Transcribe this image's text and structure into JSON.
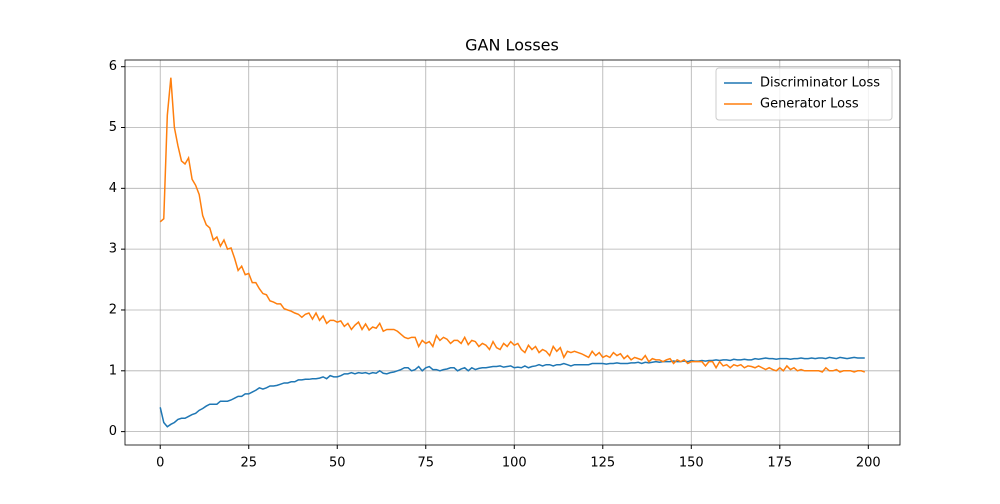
{
  "chart_data": {
    "type": "line",
    "title": "GAN Losses",
    "x": [
      0,
      1,
      2,
      3,
      4,
      5,
      6,
      7,
      8,
      9,
      10,
      11,
      12,
      13,
      14,
      15,
      16,
      17,
      18,
      19,
      20,
      21,
      22,
      23,
      24,
      25,
      26,
      27,
      28,
      29,
      30,
      31,
      32,
      33,
      34,
      35,
      36,
      37,
      38,
      39,
      40,
      41,
      42,
      43,
      44,
      45,
      46,
      47,
      48,
      49,
      50,
      51,
      52,
      53,
      54,
      55,
      56,
      57,
      58,
      59,
      60,
      61,
      62,
      63,
      64,
      65,
      66,
      67,
      68,
      69,
      70,
      71,
      72,
      73,
      74,
      75,
      76,
      77,
      78,
      79,
      80,
      81,
      82,
      83,
      84,
      85,
      86,
      87,
      88,
      89,
      90,
      91,
      92,
      93,
      94,
      95,
      96,
      97,
      98,
      99,
      100,
      101,
      102,
      103,
      104,
      105,
      106,
      107,
      108,
      109,
      110,
      111,
      112,
      113,
      114,
      115,
      116,
      117,
      118,
      119,
      120,
      121,
      122,
      123,
      124,
      125,
      126,
      127,
      128,
      129,
      130,
      131,
      132,
      133,
      134,
      135,
      136,
      137,
      138,
      139,
      140,
      141,
      142,
      143,
      144,
      145,
      146,
      147,
      148,
      149,
      150,
      151,
      152,
      153,
      154,
      155,
      156,
      157,
      158,
      159,
      160,
      161,
      162,
      163,
      164,
      165,
      166,
      167,
      168,
      169,
      170,
      171,
      172,
      173,
      174,
      175,
      176,
      177,
      178,
      179,
      180,
      181,
      182,
      183,
      184,
      185,
      186,
      187,
      188,
      189,
      190,
      191,
      192,
      193,
      194,
      195,
      196,
      197,
      198,
      199
    ],
    "series": [
      {
        "name": "Discriminator Loss",
        "color": "#1f77b4",
        "values": [
          0.4,
          0.15,
          0.08,
          0.12,
          0.15,
          0.2,
          0.22,
          0.22,
          0.25,
          0.28,
          0.3,
          0.35,
          0.38,
          0.42,
          0.45,
          0.45,
          0.45,
          0.5,
          0.5,
          0.5,
          0.52,
          0.55,
          0.58,
          0.58,
          0.62,
          0.62,
          0.65,
          0.68,
          0.72,
          0.7,
          0.72,
          0.75,
          0.75,
          0.76,
          0.78,
          0.8,
          0.8,
          0.82,
          0.82,
          0.85,
          0.85,
          0.86,
          0.86,
          0.87,
          0.87,
          0.88,
          0.9,
          0.87,
          0.92,
          0.9,
          0.9,
          0.92,
          0.95,
          0.95,
          0.97,
          0.95,
          0.97,
          0.96,
          0.97,
          0.95,
          0.97,
          0.96,
          1.0,
          0.96,
          0.95,
          0.97,
          0.98,
          1.0,
          1.02,
          1.05,
          1.05,
          1.0,
          1.02,
          1.07,
          1.0,
          1.05,
          1.07,
          1.02,
          1.02,
          1.0,
          1.02,
          1.03,
          1.05,
          1.05,
          1.0,
          1.03,
          1.05,
          1.0,
          1.05,
          1.02,
          1.04,
          1.05,
          1.05,
          1.06,
          1.07,
          1.07,
          1.08,
          1.06,
          1.07,
          1.08,
          1.05,
          1.06,
          1.05,
          1.08,
          1.05,
          1.07,
          1.08,
          1.1,
          1.08,
          1.1,
          1.1,
          1.08,
          1.1,
          1.1,
          1.12,
          1.1,
          1.08,
          1.1,
          1.1,
          1.1,
          1.1,
          1.1,
          1.12,
          1.12,
          1.12,
          1.12,
          1.11,
          1.12,
          1.12,
          1.13,
          1.12,
          1.12,
          1.12,
          1.13,
          1.13,
          1.14,
          1.12,
          1.14,
          1.13,
          1.14,
          1.15,
          1.14,
          1.15,
          1.15,
          1.15,
          1.16,
          1.15,
          1.15,
          1.16,
          1.15,
          1.17,
          1.16,
          1.16,
          1.17,
          1.16,
          1.17,
          1.17,
          1.18,
          1.17,
          1.18,
          1.18,
          1.17,
          1.19,
          1.18,
          1.18,
          1.19,
          1.18,
          1.18,
          1.2,
          1.19,
          1.2,
          1.21,
          1.2,
          1.2,
          1.19,
          1.2,
          1.2,
          1.2,
          1.19,
          1.2,
          1.2,
          1.21,
          1.2,
          1.2,
          1.21,
          1.2,
          1.21,
          1.21,
          1.2,
          1.22,
          1.21,
          1.2,
          1.22,
          1.21,
          1.2,
          1.21,
          1.22,
          1.21,
          1.21,
          1.21
        ]
      },
      {
        "name": "Generator Loss",
        "color": "#ff7f0e",
        "values": [
          3.45,
          3.5,
          5.2,
          5.82,
          5.0,
          4.7,
          4.45,
          4.4,
          4.5,
          4.15,
          4.05,
          3.9,
          3.55,
          3.4,
          3.35,
          3.15,
          3.2,
          3.05,
          3.15,
          3.0,
          3.02,
          2.85,
          2.65,
          2.72,
          2.58,
          2.6,
          2.45,
          2.45,
          2.35,
          2.27,
          2.25,
          2.15,
          2.13,
          2.1,
          2.1,
          2.02,
          2.0,
          1.98,
          1.95,
          1.93,
          1.88,
          1.93,
          1.95,
          1.85,
          1.95,
          1.83,
          1.9,
          1.78,
          1.83,
          1.83,
          1.8,
          1.82,
          1.73,
          1.78,
          1.68,
          1.75,
          1.8,
          1.68,
          1.77,
          1.67,
          1.72,
          1.7,
          1.78,
          1.65,
          1.68,
          1.68,
          1.68,
          1.65,
          1.6,
          1.55,
          1.53,
          1.55,
          1.55,
          1.4,
          1.5,
          1.45,
          1.48,
          1.4,
          1.58,
          1.5,
          1.55,
          1.52,
          1.45,
          1.5,
          1.5,
          1.45,
          1.55,
          1.43,
          1.5,
          1.48,
          1.4,
          1.45,
          1.42,
          1.35,
          1.48,
          1.38,
          1.35,
          1.45,
          1.4,
          1.48,
          1.42,
          1.45,
          1.35,
          1.3,
          1.42,
          1.35,
          1.4,
          1.3,
          1.35,
          1.32,
          1.25,
          1.4,
          1.32,
          1.38,
          1.22,
          1.32,
          1.3,
          1.32,
          1.3,
          1.28,
          1.25,
          1.22,
          1.32,
          1.25,
          1.3,
          1.22,
          1.25,
          1.22,
          1.3,
          1.25,
          1.28,
          1.2,
          1.25,
          1.18,
          1.22,
          1.2,
          1.18,
          1.25,
          1.15,
          1.2,
          1.18,
          1.18,
          1.15,
          1.18,
          1.2,
          1.12,
          1.18,
          1.15,
          1.18,
          1.12,
          1.15,
          1.15,
          1.15,
          1.15,
          1.08,
          1.15,
          1.15,
          1.05,
          1.15,
          1.08,
          1.1,
          1.05,
          1.1,
          1.08,
          1.1,
          1.05,
          1.08,
          1.07,
          1.05,
          1.08,
          1.05,
          1.02,
          1.05,
          1.02,
          1.0,
          1.05,
          1.0,
          1.08,
          1.02,
          1.05,
          1.0,
          1.02,
          1.0,
          1.0,
          1.0,
          1.0,
          1.0,
          0.98,
          1.05,
          1.0,
          1.0,
          1.02,
          0.98,
          1.0,
          1.0,
          1.0,
          0.98,
          1.0,
          1.0,
          0.98
        ]
      }
    ],
    "xlim": [
      -9.95,
      208.95
    ],
    "ylim": [
      -0.22,
      6.11
    ],
    "xticks": [
      0,
      25,
      50,
      75,
      100,
      125,
      150,
      175,
      200
    ],
    "yticks": [
      0,
      1,
      2,
      3,
      4,
      5,
      6
    ],
    "grid": true,
    "legend": "upper right"
  }
}
